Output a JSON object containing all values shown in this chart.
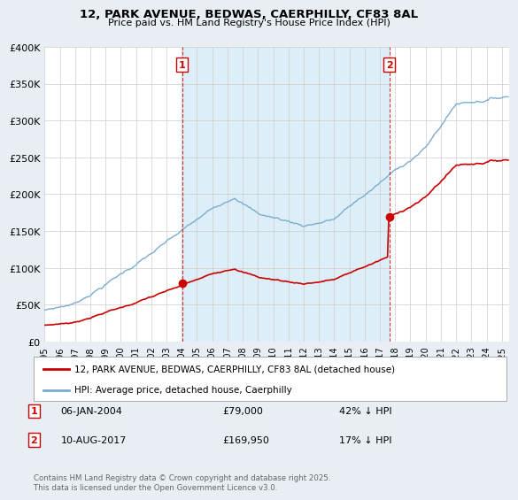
{
  "title_line1": "12, PARK AVENUE, BEDWAS, CAERPHILLY, CF83 8AL",
  "title_line2": "Price paid vs. HM Land Registry's House Price Index (HPI)",
  "ylabel_ticks": [
    "£0",
    "£50K",
    "£100K",
    "£150K",
    "£200K",
    "£250K",
    "£300K",
    "£350K",
    "£400K"
  ],
  "ytick_values": [
    0,
    50000,
    100000,
    150000,
    200000,
    250000,
    300000,
    350000,
    400000
  ],
  "ylim": [
    0,
    400000
  ],
  "xlim_start": 1995.0,
  "xlim_end": 2025.5,
  "transaction1_x": 2004.02,
  "transaction1_y": 79000,
  "transaction1_label": "06-JAN-2004",
  "transaction1_price": "£79,000",
  "transaction1_note": "42% ↓ HPI",
  "transaction2_x": 2017.61,
  "transaction2_y": 169950,
  "transaction2_label": "10-AUG-2017",
  "transaction2_price": "£169,950",
  "transaction2_note": "17% ↓ HPI",
  "house_color": "#cc0000",
  "hpi_color": "#7aadce",
  "dashed_line_color": "#cc0000",
  "bg_color": "#e8eef4",
  "plot_bg": "#ffffff",
  "shade_color": "#ddeef8",
  "legend_house": "12, PARK AVENUE, BEDWAS, CAERPHILLY, CF83 8AL (detached house)",
  "legend_hpi": "HPI: Average price, detached house, Caerphilly",
  "footer": "Contains HM Land Registry data © Crown copyright and database right 2025.\nThis data is licensed under the Open Government Licence v3.0.",
  "xtick_years": [
    1995,
    1996,
    1997,
    1998,
    1999,
    2000,
    2001,
    2002,
    2003,
    2004,
    2005,
    2006,
    2007,
    2008,
    2009,
    2010,
    2011,
    2012,
    2013,
    2014,
    2015,
    2016,
    2017,
    2018,
    2019,
    2020,
    2021,
    2022,
    2023,
    2024,
    2025
  ]
}
